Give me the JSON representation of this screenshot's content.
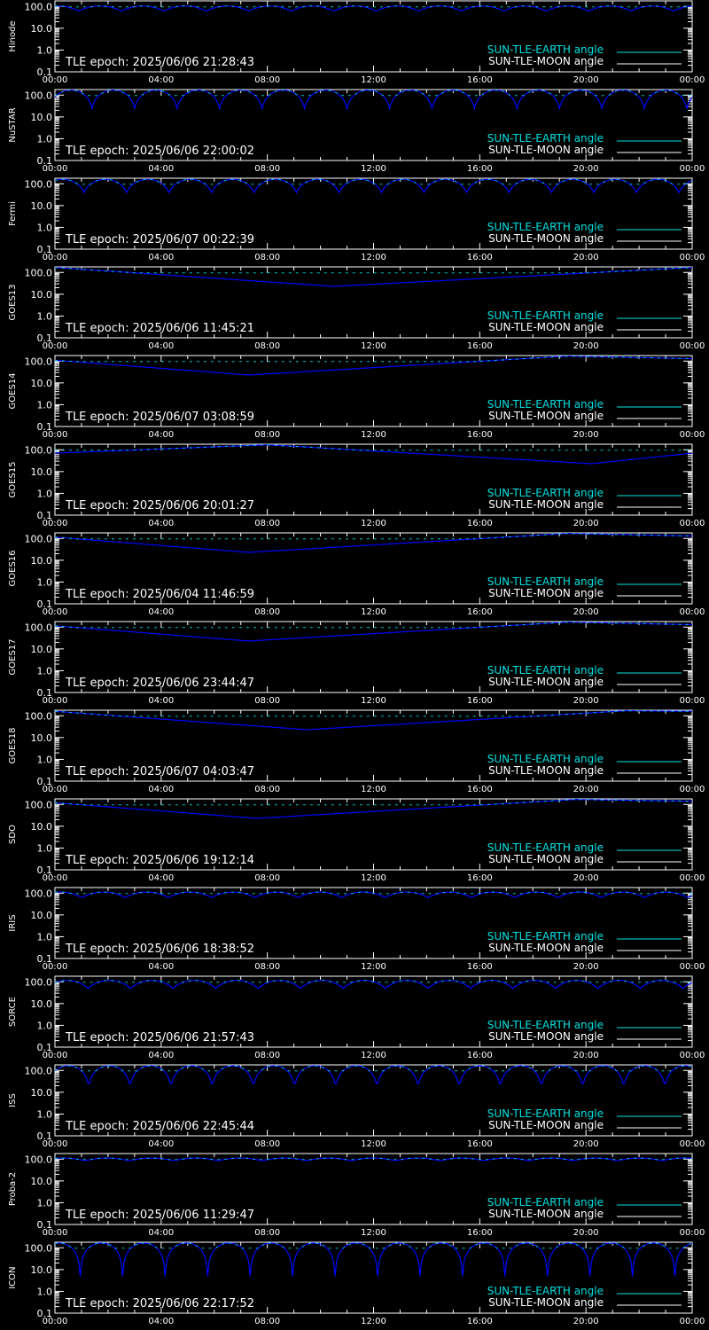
{
  "colors": {
    "earth": "#00e0e0",
    "moon": "#ffffff",
    "curve": "#0000ff",
    "axis": "#ffffff",
    "background": "#000000"
  },
  "legend": {
    "earth_label": "SUN-TLE-EARTH angle",
    "moon_label": "SUN-TLE-MOON angle"
  },
  "epoch_prefix": "TLE epoch: ",
  "x_ticks": [
    "00:00",
    "04:00",
    "08:00",
    "12:00",
    "16:00",
    "20:00",
    "00:00"
  ],
  "y_ticks": [
    "0.1",
    "1.0",
    "10.0",
    "100.0"
  ],
  "chart_data": [
    {
      "type": "line",
      "satellite": "Hinode",
      "epoch": "2025/06/06 21:28:43",
      "yscale": "log",
      "ylim": [
        0.1,
        180
      ],
      "xlim": [
        0,
        24
      ],
      "periodic": {
        "period_h": 1.6,
        "min": 62,
        "max": 105,
        "phase_h": 0.1
      }
    },
    {
      "type": "line",
      "satellite": "NuSTAR",
      "epoch": "2025/06/06 22:00:02",
      "yscale": "log",
      "ylim": [
        0.1,
        180
      ],
      "xlim": [
        0,
        24
      ],
      "periodic": {
        "period_h": 1.6,
        "min": 25,
        "max": 170,
        "phase_h": 0.6
      }
    },
    {
      "type": "line",
      "satellite": "Fermi",
      "epoch": "2025/06/07 00:22:39",
      "yscale": "log",
      "ylim": [
        0.1,
        180
      ],
      "xlim": [
        0,
        24
      ],
      "periodic": {
        "period_h": 1.6,
        "min": 40,
        "max": 160,
        "phase_h": 0.3
      }
    },
    {
      "type": "line",
      "satellite": "GOES13",
      "epoch": "2025/06/06 11:45:21",
      "yscale": "log",
      "ylim": [
        0.1,
        180
      ],
      "xlim": [
        0,
        24
      ],
      "v_curve": {
        "x": [
          0,
          10.5,
          24
        ],
        "y": [
          170,
          23,
          170
        ]
      }
    },
    {
      "type": "line",
      "satellite": "GOES14",
      "epoch": "2025/06/07 03:08:59",
      "yscale": "log",
      "ylim": [
        0.1,
        180
      ],
      "xlim": [
        0,
        24
      ],
      "v_curve": {
        "x": [
          0,
          7.3,
          19.3,
          24
        ],
        "y": [
          110,
          23,
          170,
          130
        ]
      }
    },
    {
      "type": "line",
      "satellite": "GOES15",
      "epoch": "2025/06/06 20:01:27",
      "yscale": "log",
      "ylim": [
        0.1,
        180
      ],
      "xlim": [
        0,
        24
      ],
      "v_curve": {
        "x": [
          0,
          8.0,
          20.2,
          24
        ],
        "y": [
          70,
          170,
          23,
          70
        ]
      }
    },
    {
      "type": "line",
      "satellite": "GOES16",
      "epoch": "2025/06/04 11:46:59",
      "yscale": "log",
      "ylim": [
        0.1,
        180
      ],
      "xlim": [
        0,
        24
      ],
      "v_curve": {
        "x": [
          0,
          7.3,
          19.3,
          24
        ],
        "y": [
          115,
          23,
          170,
          130
        ]
      }
    },
    {
      "type": "line",
      "satellite": "GOES17",
      "epoch": "2025/06/06 23:44:47",
      "yscale": "log",
      "ylim": [
        0.1,
        180
      ],
      "xlim": [
        0,
        24
      ],
      "v_curve": {
        "x": [
          0,
          7.3,
          19.3,
          24
        ],
        "y": [
          115,
          23,
          170,
          130
        ]
      }
    },
    {
      "type": "line",
      "satellite": "GOES18",
      "epoch": "2025/06/07 04:03:47",
      "yscale": "log",
      "ylim": [
        0.1,
        180
      ],
      "xlim": [
        0,
        24
      ],
      "v_curve": {
        "x": [
          0,
          9.5,
          21.5,
          24
        ],
        "y": [
          160,
          23,
          170,
          160
        ]
      }
    },
    {
      "type": "line",
      "satellite": "SDO",
      "epoch": "2025/06/06 19:12:14",
      "yscale": "log",
      "ylim": [
        0.1,
        180
      ],
      "xlim": [
        0,
        24
      ],
      "v_curve": {
        "x": [
          0,
          7.6,
          19.6,
          24
        ],
        "y": [
          120,
          23,
          170,
          140
        ]
      }
    },
    {
      "type": "line",
      "satellite": "IRIS",
      "epoch": "2025/06/06 18:38:52",
      "yscale": "log",
      "ylim": [
        0.1,
        180
      ],
      "xlim": [
        0,
        24
      ],
      "periodic": {
        "period_h": 1.63,
        "min": 62,
        "max": 112,
        "phase_h": 0.2
      }
    },
    {
      "type": "line",
      "satellite": "SORCE",
      "epoch": "2025/06/06 21:57:43",
      "yscale": "log",
      "ylim": [
        0.1,
        180
      ],
      "xlim": [
        0,
        24
      ],
      "periodic": {
        "period_h": 1.6,
        "min": 50,
        "max": 115,
        "phase_h": 0.45
      }
    },
    {
      "type": "line",
      "satellite": "ISS",
      "epoch": "2025/06/06 22:45:44",
      "yscale": "log",
      "ylim": [
        0.1,
        180
      ],
      "xlim": [
        0,
        24
      ],
      "periodic": {
        "period_h": 1.55,
        "min": 18,
        "max": 165,
        "phase_h": 0.5
      }
    },
    {
      "type": "line",
      "satellite": "Proba-2",
      "epoch": "2025/06/06 11:29:47",
      "yscale": "log",
      "ylim": [
        0.1,
        180
      ],
      "xlim": [
        0,
        24
      ],
      "periodic": {
        "period_h": 1.67,
        "min": 85,
        "max": 112,
        "phase_h": 0.3
      }
    },
    {
      "type": "line",
      "satellite": "ICON",
      "epoch": "2025/06/06 22:17:52",
      "yscale": "log",
      "ylim": [
        0.1,
        180
      ],
      "xlim": [
        0,
        24
      ],
      "periodic": {
        "period_h": 1.6,
        "min": 5,
        "max": 165,
        "phase_h": 0.15
      }
    }
  ]
}
